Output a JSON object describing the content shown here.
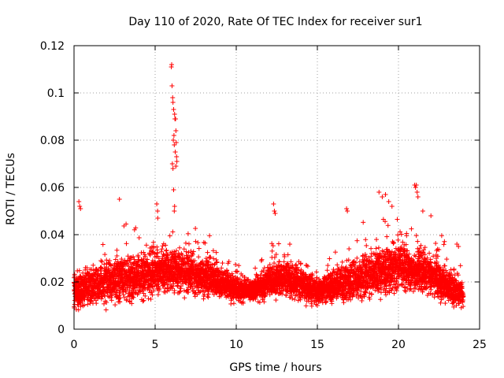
{
  "chart_data": {
    "type": "scatter",
    "title": "Day 110 of 2020, Rate Of TEC Index for receiver sur1",
    "xlabel": "GPS time / hours",
    "ylabel": "ROTI / TECUs",
    "xlim": [
      0,
      25
    ],
    "ylim": [
      0,
      0.12
    ],
    "x_ticks": [
      "0",
      "5",
      "10",
      "15",
      "20",
      "25"
    ],
    "y_ticks": [
      "0",
      "0.02",
      "0.04",
      "0.06",
      "0.08",
      "0.1",
      "0.12"
    ],
    "marker": "plus",
    "series_color": "#ff0000",
    "grid": true,
    "sample_interval_hours": 0.0083,
    "time_range_hours": [
      0,
      24
    ],
    "baseline_profile": [
      {
        "t": 0,
        "median": 0.016,
        "spread": 0.008
      },
      {
        "t": 1,
        "median": 0.018,
        "spread": 0.009
      },
      {
        "t": 2,
        "median": 0.02,
        "spread": 0.01
      },
      {
        "t": 3,
        "median": 0.021,
        "spread": 0.011
      },
      {
        "t": 4,
        "median": 0.022,
        "spread": 0.011
      },
      {
        "t": 5,
        "median": 0.024,
        "spread": 0.011
      },
      {
        "t": 6,
        "median": 0.025,
        "spread": 0.011
      },
      {
        "t": 7,
        "median": 0.024,
        "spread": 0.01
      },
      {
        "t": 8,
        "median": 0.022,
        "spread": 0.009
      },
      {
        "t": 9,
        "median": 0.02,
        "spread": 0.008
      },
      {
        "t": 10,
        "median": 0.017,
        "spread": 0.006
      },
      {
        "t": 11,
        "median": 0.016,
        "spread": 0.005
      },
      {
        "t": 12,
        "median": 0.02,
        "spread": 0.008
      },
      {
        "t": 13,
        "median": 0.022,
        "spread": 0.009
      },
      {
        "t": 14,
        "median": 0.019,
        "spread": 0.008
      },
      {
        "t": 15,
        "median": 0.016,
        "spread": 0.006
      },
      {
        "t": 16,
        "median": 0.018,
        "spread": 0.008
      },
      {
        "t": 17,
        "median": 0.02,
        "spread": 0.009
      },
      {
        "t": 18,
        "median": 0.022,
        "spread": 0.01
      },
      {
        "t": 19,
        "median": 0.025,
        "spread": 0.012
      },
      {
        "t": 20,
        "median": 0.026,
        "spread": 0.012
      },
      {
        "t": 21,
        "median": 0.025,
        "spread": 0.011
      },
      {
        "t": 22,
        "median": 0.023,
        "spread": 0.01
      },
      {
        "t": 23,
        "median": 0.018,
        "spread": 0.008
      },
      {
        "t": 24,
        "median": 0.014,
        "spread": 0.005
      }
    ],
    "spike_points": [
      {
        "x": 6.0,
        "y": 0.111
      },
      {
        "x": 6.02,
        "y": 0.112
      },
      {
        "x": 6.04,
        "y": 0.103
      },
      {
        "x": 6.08,
        "y": 0.098
      },
      {
        "x": 6.1,
        "y": 0.096
      },
      {
        "x": 6.14,
        "y": 0.093
      },
      {
        "x": 6.2,
        "y": 0.091
      },
      {
        "x": 6.22,
        "y": 0.089
      },
      {
        "x": 6.26,
        "y": 0.089
      },
      {
        "x": 6.28,
        "y": 0.084
      },
      {
        "x": 6.12,
        "y": 0.08
      },
      {
        "x": 6.18,
        "y": 0.078
      },
      {
        "x": 6.16,
        "y": 0.082
      },
      {
        "x": 6.3,
        "y": 0.079
      },
      {
        "x": 6.24,
        "y": 0.075
      },
      {
        "x": 6.32,
        "y": 0.073
      },
      {
        "x": 6.34,
        "y": 0.071
      },
      {
        "x": 6.06,
        "y": 0.07
      },
      {
        "x": 6.1,
        "y": 0.068
      },
      {
        "x": 6.28,
        "y": 0.069
      },
      {
        "x": 6.14,
        "y": 0.059
      },
      {
        "x": 6.2,
        "y": 0.052
      },
      {
        "x": 6.18,
        "y": 0.05
      },
      {
        "x": 0.3,
        "y": 0.054
      },
      {
        "x": 0.35,
        "y": 0.052
      },
      {
        "x": 0.4,
        "y": 0.051
      },
      {
        "x": 2.8,
        "y": 0.055
      },
      {
        "x": 5.1,
        "y": 0.053
      },
      {
        "x": 5.15,
        "y": 0.05
      },
      {
        "x": 12.3,
        "y": 0.053
      },
      {
        "x": 12.35,
        "y": 0.05
      },
      {
        "x": 12.4,
        "y": 0.049
      },
      {
        "x": 16.8,
        "y": 0.051
      },
      {
        "x": 16.85,
        "y": 0.05
      },
      {
        "x": 18.8,
        "y": 0.058
      },
      {
        "x": 19.0,
        "y": 0.056
      },
      {
        "x": 19.2,
        "y": 0.057
      },
      {
        "x": 19.4,
        "y": 0.054
      },
      {
        "x": 19.6,
        "y": 0.052
      },
      {
        "x": 21.0,
        "y": 0.061
      },
      {
        "x": 21.05,
        "y": 0.06
      },
      {
        "x": 21.1,
        "y": 0.061
      },
      {
        "x": 21.15,
        "y": 0.058
      },
      {
        "x": 21.2,
        "y": 0.056
      },
      {
        "x": 21.5,
        "y": 0.05
      },
      {
        "x": 22.0,
        "y": 0.048
      },
      {
        "x": 23.6,
        "y": 0.036
      },
      {
        "x": 23.7,
        "y": 0.035
      }
    ]
  }
}
